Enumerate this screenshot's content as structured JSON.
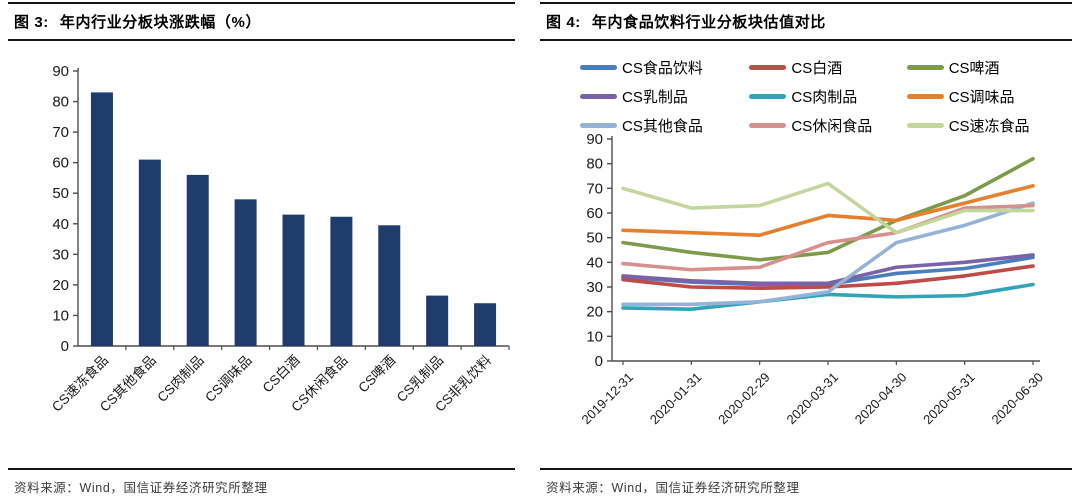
{
  "panels": {
    "fig3": {
      "title_label": "图 3:",
      "title_text": "年内行业分板块涨跌幅（%）",
      "source": "资料来源：Wind，国信证券经济研究所整理"
    },
    "fig4": {
      "title_label": "图 4:",
      "title_text": "年内食品饮料行业分板块估值对比",
      "source": "资料来源：Wind，国信证券经济研究所整理"
    }
  },
  "chart_data": [
    {
      "type": "bar",
      "title": "图 3: 年内行业分板块涨跌幅（%）",
      "categories": [
        "CS速冻食品",
        "CS其他食品",
        "CS肉制品",
        "CS调味品",
        "CS白酒",
        "CS休闲食品",
        "CS啤酒",
        "CS乳制品",
        "CS非乳饮料"
      ],
      "values": [
        83,
        61,
        56,
        48,
        43,
        42.3,
        39.5,
        16.5,
        14
      ],
      "xlabel": "",
      "ylabel": "",
      "ylim": [
        0,
        90
      ],
      "ytick_step": 10,
      "grid": false,
      "bar_color": "#1E3D6E",
      "axis_color": "#4d4d4d",
      "tick_label_color": "#1a1a1a"
    },
    {
      "type": "line",
      "title": "图 4: 年内食品饮料行业分板块估值对比",
      "x": [
        "2019-12-31",
        "2020-01-31",
        "2020-02-29",
        "2020-03-31",
        "2020-04-30",
        "2020-05-31",
        "2020-06-30"
      ],
      "series": [
        {
          "name": "CS食品饮料",
          "color": "#4A7EBB",
          "values": [
            34,
            32,
            31,
            31,
            35.5,
            37.5,
            42
          ]
        },
        {
          "name": "CS白酒",
          "color": "#BE4B48",
          "values": [
            33,
            30,
            29.5,
            30,
            31.5,
            34.5,
            38.5
          ]
        },
        {
          "name": "CS啤酒",
          "color": "#7E9B49",
          "values": [
            48,
            44,
            41,
            44,
            57,
            67,
            82
          ]
        },
        {
          "name": "CS乳制品",
          "color": "#7A62A8",
          "values": [
            34.5,
            32.5,
            31.5,
            31.5,
            38,
            40,
            43
          ]
        },
        {
          "name": "CS肉制品",
          "color": "#33A3B8",
          "values": [
            21.5,
            21,
            24,
            27,
            26,
            26.5,
            31
          ]
        },
        {
          "name": "CS调味品",
          "color": "#E5802F",
          "values": [
            53,
            52,
            51,
            59,
            57,
            64,
            71
          ]
        },
        {
          "name": "CS其他食品",
          "color": "#95B3D7",
          "values": [
            23,
            23,
            24,
            28,
            48,
            55,
            64
          ]
        },
        {
          "name": "CS休闲食品",
          "color": "#D6908E",
          "values": [
            39.5,
            37,
            38,
            48,
            52,
            62,
            63
          ]
        },
        {
          "name": "CS速冻食品",
          "color": "#C3D69B",
          "values": [
            70,
            62,
            63,
            72,
            52,
            61,
            61
          ]
        }
      ],
      "ylim": [
        0,
        90
      ],
      "ytick_step": 10,
      "legend_position": "top",
      "grid": false,
      "axis_color": "#4d4d4d",
      "tick_label_color": "#1a1a1a"
    }
  ]
}
